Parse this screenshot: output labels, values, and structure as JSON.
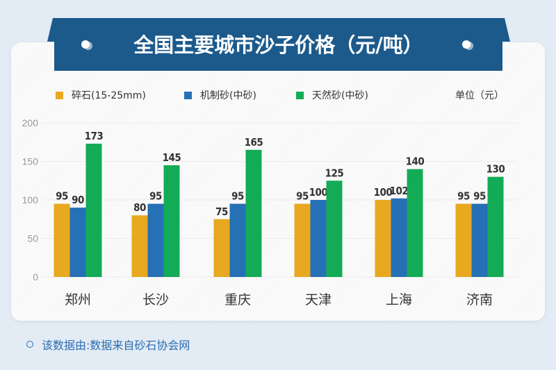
{
  "title": "全国主要城市沙子价格（元/吨）",
  "unit_label": "单位（元）",
  "source": "该数据由:数据来自砂石协会网",
  "chart_data": {
    "type": "bar",
    "title": "全国主要城市沙子价格（元/吨）",
    "categories": [
      "郑州",
      "长沙",
      "重庆",
      "天津",
      "上海",
      "济南"
    ],
    "series": [
      {
        "name": "碎石(15-25mm)",
        "color": "#e8a820",
        "values": [
          95,
          80,
          75,
          95,
          100,
          95
        ]
      },
      {
        "name": "机制砂(中砂)",
        "color": "#2670b5",
        "values": [
          90,
          95,
          95,
          100,
          102,
          95
        ]
      },
      {
        "name": "天然砂(中砂)",
        "color": "#14ab56",
        "values": [
          173,
          145,
          165,
          125,
          140,
          130
        ]
      }
    ],
    "yticks": [
      0,
      50,
      100,
      150,
      200
    ],
    "ylim": [
      0,
      200
    ],
    "grid": true,
    "legend_position": "top-left",
    "data_labels": true
  }
}
